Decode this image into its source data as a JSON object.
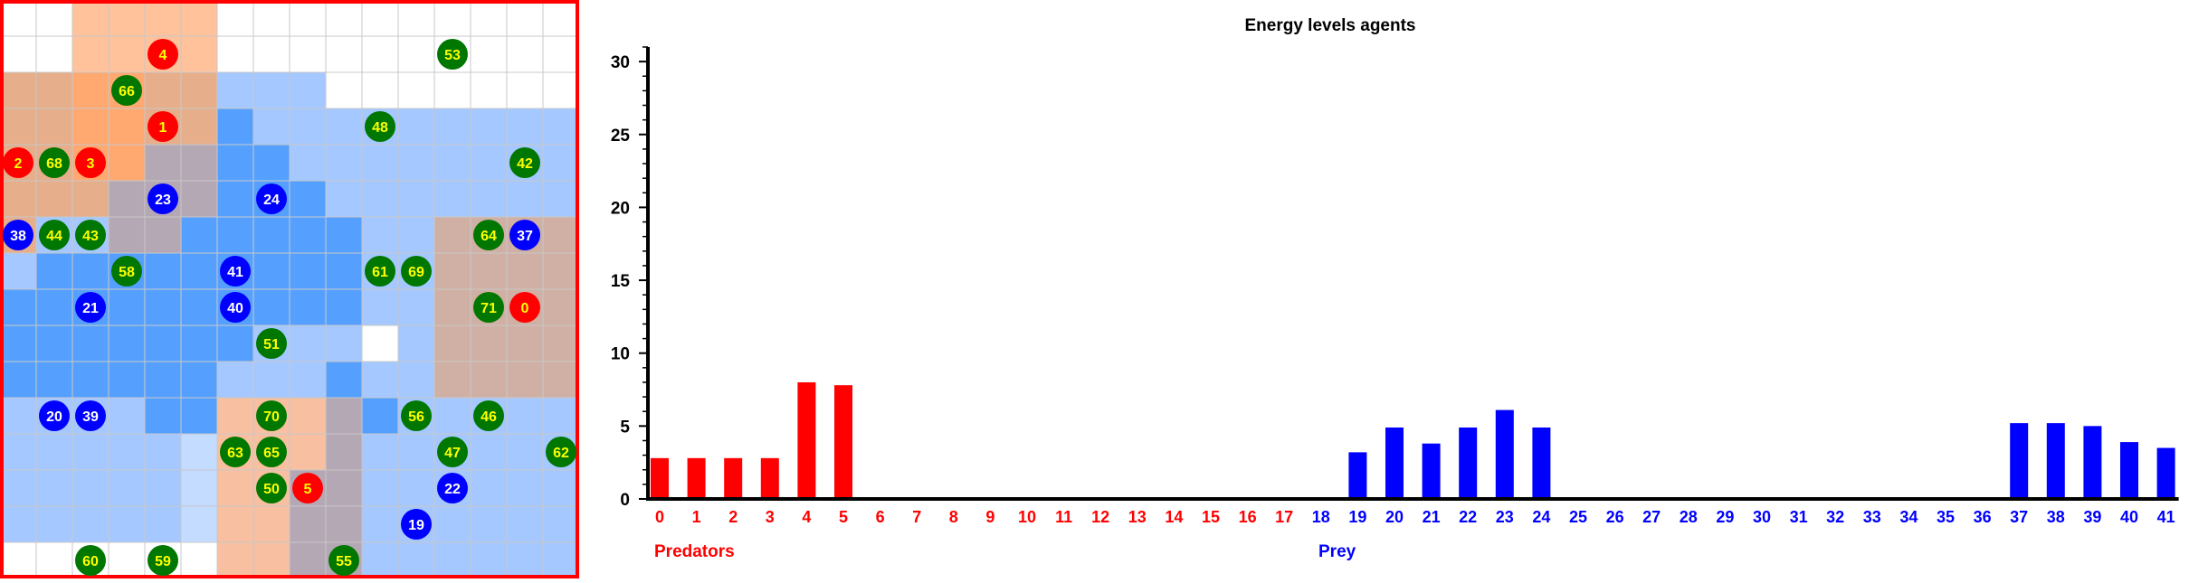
{
  "colors": {
    "predator": "#ff0000",
    "prey": "#0000ff",
    "food": "#007700",
    "grid_border": "#ff0000",
    "label_predator_text": "#ffff00",
    "label_prey_text": "#ffffff",
    "label_food_text": "#ffff00"
  },
  "world": {
    "cols": 16,
    "rows": 16,
    "cells": [
      "WWooooWWWWWWWWWW",
      "WWooooWWWWWWWWWW",
      "ppOOppbbbWWWWWWW",
      "ppOOppBbbbbbbbbb",
      "ppOOmmBBbbbbbbbb",
      "pppmmmBBBbbbbbbb",
      "pbbmmBBBBBbbrrrr",
      "bBBBBBBBBBbbrrrr",
      "BBBBBBBBBBbbrrrr",
      "BBBBBBBbbbWbrrrr",
      "BBBBBBbbbBbbrrrr",
      "bbbbBBqqqmBbbbbb",
      "bbbbbcqqqmbbbbbb",
      "bbbbbcqqmmbbbbbb",
      "bbbbbcqqmmbbbbbb",
      "WWWWWWqqmmbbbbbb"
    ],
    "agents": [
      {
        "id": 4,
        "kind": "predator",
        "col": 4,
        "row": 1
      },
      {
        "id": 53,
        "kind": "food",
        "col": 12,
        "row": 1
      },
      {
        "id": 66,
        "kind": "food",
        "col": 3,
        "row": 2
      },
      {
        "id": 1,
        "kind": "predator",
        "col": 4,
        "row": 3
      },
      {
        "id": 48,
        "kind": "food",
        "col": 10,
        "row": 3
      },
      {
        "id": 2,
        "kind": "predator",
        "col": 0,
        "row": 4
      },
      {
        "id": 68,
        "kind": "food",
        "col": 1,
        "row": 4
      },
      {
        "id": 3,
        "kind": "predator",
        "col": 2,
        "row": 4
      },
      {
        "id": 42,
        "kind": "food",
        "col": 14,
        "row": 4
      },
      {
        "id": 23,
        "kind": "prey",
        "col": 4,
        "row": 5
      },
      {
        "id": 24,
        "kind": "prey",
        "col": 7,
        "row": 5
      },
      {
        "id": 38,
        "kind": "prey",
        "col": 0,
        "row": 6
      },
      {
        "id": 44,
        "kind": "food",
        "col": 1,
        "row": 6
      },
      {
        "id": 43,
        "kind": "food",
        "col": 2,
        "row": 6
      },
      {
        "id": 64,
        "kind": "food",
        "col": 13,
        "row": 6
      },
      {
        "id": 37,
        "kind": "prey",
        "col": 14,
        "row": 6
      },
      {
        "id": 58,
        "kind": "food",
        "col": 3,
        "row": 7
      },
      {
        "id": 41,
        "kind": "prey",
        "col": 6,
        "row": 7
      },
      {
        "id": 61,
        "kind": "food",
        "col": 10,
        "row": 7
      },
      {
        "id": 69,
        "kind": "food",
        "col": 11,
        "row": 7
      },
      {
        "id": 21,
        "kind": "prey",
        "col": 2,
        "row": 8
      },
      {
        "id": 40,
        "kind": "prey",
        "col": 6,
        "row": 8
      },
      {
        "id": 71,
        "kind": "food",
        "col": 13,
        "row": 8
      },
      {
        "id": 0,
        "kind": "predator",
        "col": 14,
        "row": 8
      },
      {
        "id": 51,
        "kind": "food",
        "col": 7,
        "row": 9
      },
      {
        "id": 20,
        "kind": "prey",
        "col": 1,
        "row": 11
      },
      {
        "id": 39,
        "kind": "prey",
        "col": 2,
        "row": 11
      },
      {
        "id": 70,
        "kind": "food",
        "col": 7,
        "row": 11
      },
      {
        "id": 56,
        "kind": "food",
        "col": 11,
        "row": 11
      },
      {
        "id": 46,
        "kind": "food",
        "col": 13,
        "row": 11
      },
      {
        "id": 63,
        "kind": "food",
        "col": 6,
        "row": 12
      },
      {
        "id": 65,
        "kind": "food",
        "col": 7,
        "row": 12
      },
      {
        "id": 47,
        "kind": "food",
        "col": 12,
        "row": 12
      },
      {
        "id": 62,
        "kind": "food",
        "col": 15,
        "row": 12
      },
      {
        "id": 50,
        "kind": "food",
        "col": 7,
        "row": 13
      },
      {
        "id": 5,
        "kind": "predator",
        "col": 8,
        "row": 13
      },
      {
        "id": 22,
        "kind": "prey",
        "col": 12,
        "row": 13
      },
      {
        "id": 19,
        "kind": "prey",
        "col": 11,
        "row": 14
      },
      {
        "id": 60,
        "kind": "food",
        "col": 2,
        "row": 15
      },
      {
        "id": 59,
        "kind": "food",
        "col": 4,
        "row": 15
      },
      {
        "id": 55,
        "kind": "food",
        "col": 9,
        "row": 15
      }
    ]
  },
  "chart_data": {
    "type": "bar",
    "title": "Energy levels agents",
    "xlabel": "",
    "ylabel": "",
    "ylim": [
      0,
      31
    ],
    "yticks": [
      0,
      5,
      10,
      15,
      20,
      25,
      30
    ],
    "grid": false,
    "categories": [
      "0",
      "1",
      "2",
      "3",
      "4",
      "5",
      "6",
      "7",
      "8",
      "9",
      "10",
      "11",
      "12",
      "13",
      "14",
      "15",
      "16",
      "17",
      "18",
      "19",
      "20",
      "21",
      "22",
      "23",
      "24",
      "25",
      "26",
      "27",
      "28",
      "29",
      "30",
      "31",
      "32",
      "33",
      "34",
      "35",
      "36",
      "37",
      "38",
      "39",
      "40",
      "41"
    ],
    "values": [
      2.8,
      2.8,
      2.8,
      2.8,
      8.0,
      7.8,
      0,
      0,
      0,
      0,
      0,
      0,
      0,
      0,
      0,
      0,
      0,
      0,
      0,
      3.2,
      4.9,
      3.8,
      4.9,
      6.1,
      4.9,
      0,
      0,
      0,
      0,
      0,
      0,
      0,
      0,
      0,
      0,
      0,
      0,
      5.2,
      5.2,
      5.0,
      3.9,
      3.5
    ],
    "series": [
      {
        "name": "Predators",
        "from": 0,
        "to": 17,
        "color": "#ff0000"
      },
      {
        "name": "Prey",
        "from": 18,
        "to": 41,
        "color": "#0000ff"
      }
    ]
  }
}
